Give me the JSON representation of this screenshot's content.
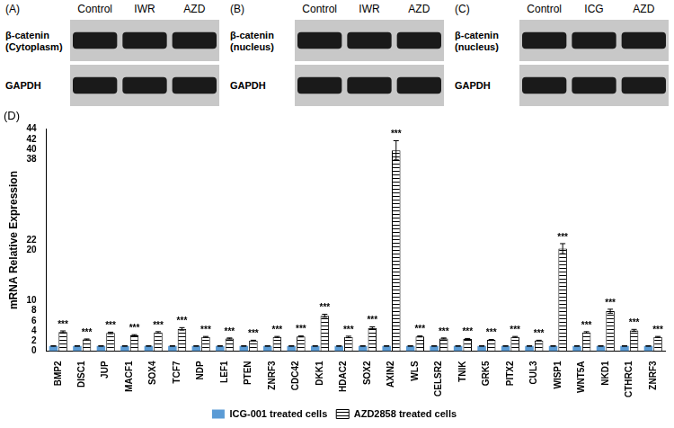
{
  "blots": [
    {
      "label": "(A)",
      "lanes": [
        "Control",
        "IWR",
        "AZD"
      ],
      "rows": [
        [
          "β-catenin",
          "(Cytoplasm)"
        ],
        [
          "GAPDH"
        ]
      ]
    },
    {
      "label": "(B)",
      "lanes": [
        "Control",
        "IWR",
        "AZD"
      ],
      "rows": [
        [
          "β-catenin",
          "(nucleus)"
        ],
        [
          "GAPDH"
        ]
      ]
    },
    {
      "label": "(C)",
      "lanes": [
        "Control",
        "ICG",
        "AZD"
      ],
      "rows": [
        [
          "β-catenin",
          "(nucleus)"
        ],
        [
          "GAPDH"
        ]
      ]
    }
  ],
  "chart_data": {
    "type": "bar",
    "title": "(D)",
    "y_label": "mRNA Relative Expression",
    "categories": [
      "BMP2",
      "DISC1",
      "JUP",
      "MACF1",
      "SOX4",
      "TCF7",
      "NDP",
      "LEF1",
      "PTEN",
      "ZNRF3",
      "CDC42",
      "DKK1",
      "HDAC2",
      "SOX2",
      "AXIN2",
      "WLS",
      "CELSR2",
      "TNIK",
      "GRK5",
      "PITX2",
      "CUL3",
      "WISP1",
      "WNT5A",
      "NKD1",
      "CTHRC1",
      "ZNRF3"
    ],
    "series": [
      {
        "name": "ICG-001 treated cells",
        "color": "#5b9bd5",
        "values": [
          1,
          1,
          1,
          1,
          1,
          1,
          1,
          1,
          1,
          1,
          1,
          1,
          1,
          1,
          1,
          1,
          1,
          1,
          1,
          1,
          1,
          1,
          1,
          1,
          1,
          1
        ],
        "errors": [
          0.05,
          0.05,
          0.05,
          0.05,
          0.05,
          0.05,
          0.05,
          0.05,
          0.05,
          0.05,
          0.05,
          0.05,
          0.05,
          0.05,
          0.05,
          0.05,
          0.05,
          0.05,
          0.05,
          0.05,
          0.05,
          0.05,
          0.05,
          0.05,
          0.05,
          0.05
        ]
      },
      {
        "name": "AZD2858 treated cells",
        "color": "#000000",
        "values": [
          3.8,
          2.3,
          3.6,
          3.1,
          3.7,
          4.4,
          2.8,
          2.5,
          2.1,
          2.8,
          2.9,
          7.0,
          2.8,
          4.6,
          39.8,
          2.9,
          2.5,
          2.4,
          2.2,
          2.8,
          2.1,
          20.3,
          3.7,
          7.9,
          4.1,
          2.8
        ],
        "errors": [
          0.2,
          0.1,
          0.15,
          0.15,
          0.15,
          0.25,
          0.1,
          0.1,
          0.05,
          0.1,
          0.1,
          0.3,
          0.15,
          0.2,
          1.9,
          0.1,
          0.1,
          0.1,
          0.1,
          0.1,
          0.05,
          1.0,
          0.15,
          0.4,
          0.2,
          0.1
        ],
        "significance": [
          "***",
          "***",
          "***",
          "***",
          "***",
          "***",
          "***",
          "***",
          "***",
          "***",
          "***",
          "***",
          "***",
          "***",
          "***",
          "***",
          "***",
          "***",
          "***",
          "***",
          "***",
          "***",
          "***",
          "***",
          "***",
          "***"
        ]
      }
    ],
    "ylim": [
      0,
      44
    ],
    "yticks": [
      0,
      2,
      4,
      6,
      8,
      10,
      20,
      22,
      38,
      40,
      42,
      44
    ],
    "grid": false,
    "legend": "bottom"
  }
}
